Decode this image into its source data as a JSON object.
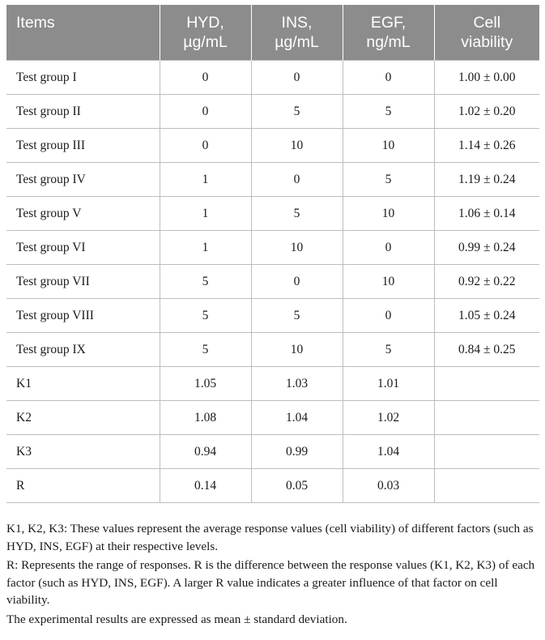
{
  "table": {
    "headers": [
      {
        "line1": "Items",
        "line2": ""
      },
      {
        "line1": "HYD,",
        "line2": "µg/mL"
      },
      {
        "line1": "INS,",
        "line2": "µg/mL"
      },
      {
        "line1": "EGF,",
        "line2": "ng/mL"
      },
      {
        "line1": "Cell",
        "line2": "viability"
      }
    ],
    "rows": [
      [
        "Test group I",
        "0",
        "0",
        "0",
        "1.00 ± 0.00"
      ],
      [
        "Test group II",
        "0",
        "5",
        "5",
        "1.02 ± 0.20"
      ],
      [
        "Test group III",
        "0",
        "10",
        "10",
        "1.14 ± 0.26"
      ],
      [
        "Test group IV",
        "1",
        "0",
        "5",
        "1.19 ± 0.24"
      ],
      [
        "Test group V",
        "1",
        "5",
        "10",
        "1.06 ± 0.14"
      ],
      [
        "Test group VI",
        "1",
        "10",
        "0",
        "0.99 ± 0.24"
      ],
      [
        "Test group VII",
        "5",
        "0",
        "10",
        "0.92 ± 0.22"
      ],
      [
        "Test group VIII",
        "5",
        "5",
        "0",
        "1.05 ± 0.24"
      ],
      [
        "Test group IX",
        "5",
        "10",
        "5",
        "0.84 ± 0.25"
      ],
      [
        "K1",
        "1.05",
        "1.03",
        "1.01",
        ""
      ],
      [
        "K2",
        "1.08",
        "1.04",
        "1.02",
        ""
      ],
      [
        "K3",
        "0.94",
        "0.99",
        "1.04",
        ""
      ],
      [
        "R",
        "0.14",
        "0.05",
        "0.03",
        ""
      ]
    ]
  },
  "notes": [
    "K1, K2, K3: These values represent the average response values (cell viability) of different factors (such as HYD, INS, EGF) at their respective levels.",
    "R: Represents the range of responses. R is the difference between the response values (K1, K2, K3) of each factor (such as HYD, INS, EGF). A larger R value indicates a greater influence of that factor on cell viability.",
    "The experimental results are expressed as mean ± standard deviation."
  ],
  "colors": {
    "header_background": "#8c8c8c",
    "header_text": "#ffffff",
    "grid_lines": "#bdbdbd"
  }
}
